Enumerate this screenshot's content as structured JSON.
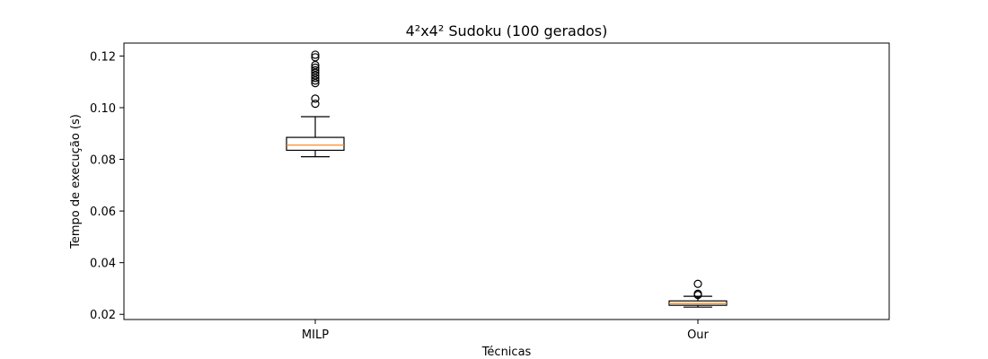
{
  "chart_data": {
    "type": "boxplot",
    "title": "4²x4² Sudoku (100 gerados)",
    "xlabel": "Técnicas",
    "ylabel": "Tempo de execução (s)",
    "ylim": [
      0.018,
      0.125
    ],
    "yticks": [
      0.02,
      0.04,
      0.06,
      0.08,
      0.1,
      0.12
    ],
    "ytick_labels": [
      "0.02",
      "0.04",
      "0.06",
      "0.08",
      "0.10",
      "0.12"
    ],
    "grid": false,
    "categories": [
      "MILP",
      "Our"
    ],
    "boxes": [
      {
        "category": "MILP",
        "whisker_low": 0.081,
        "q1": 0.0835,
        "median": 0.0855,
        "q3": 0.0885,
        "whisker_high": 0.0965,
        "fliers": [
          0.1015,
          0.1035,
          0.1095,
          0.1105,
          0.1115,
          0.1125,
          0.1135,
          0.1145,
          0.1155,
          0.1165,
          0.1195,
          0.1205
        ]
      },
      {
        "category": "Our",
        "whisker_low": 0.0228,
        "q1": 0.0235,
        "median": 0.0242,
        "q3": 0.0252,
        "whisker_high": 0.027,
        "fliers": [
          0.0275,
          0.028,
          0.0318
        ]
      }
    ],
    "colors": {
      "box": "#000000",
      "median": "#ff7f0e",
      "flier": "#000000"
    }
  }
}
